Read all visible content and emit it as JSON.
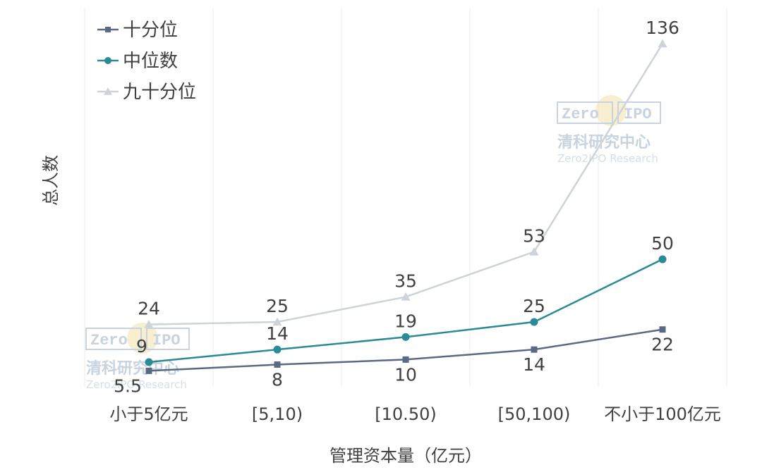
{
  "chart_data": {
    "type": "line",
    "categories": [
      "小于5亿元",
      "[5,10)",
      "[10.50)",
      "[50,100)",
      "不小于100亿元"
    ],
    "series": [
      {
        "name": "十分位",
        "values": [
          5.5,
          8,
          10,
          14,
          22
        ],
        "color": "#5a6a85",
        "marker": "square",
        "label_position": "below"
      },
      {
        "name": "中位数",
        "values": [
          9,
          14,
          19,
          25,
          50
        ],
        "color": "#2a8a96",
        "marker": "circle",
        "label_position": "above"
      },
      {
        "name": "九十分位",
        "values": [
          24,
          25,
          35,
          53,
          136
        ],
        "color": "#cdd3d8",
        "marker": "triangle",
        "label_position": "above"
      }
    ],
    "xlabel": "管理资本量（亿元）",
    "ylabel": "总人数",
    "ylim": [
      0,
      145
    ],
    "grid": "vertical",
    "legend_position": "top-left"
  },
  "watermark": {
    "brand_left": "Zero",
    "brand_right": "IPO",
    "name_cn": "清科研究中心",
    "name_en": "Zero2IPO Research",
    "color": "#c7d3df",
    "accent": "#f3e2b0"
  }
}
